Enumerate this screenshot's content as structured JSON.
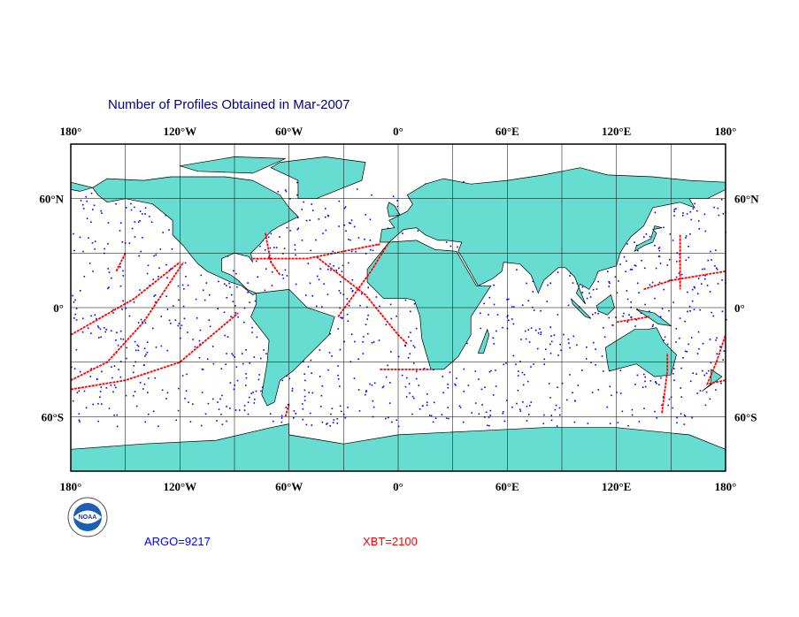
{
  "title": "Number of Profiles Obtained in Mar-2007",
  "lon_labels": [
    "180°",
    "120°W",
    "60°W",
    "0°",
    "60°E",
    "120°E",
    "180°"
  ],
  "lat_labels": [
    "60°N",
    "0°",
    "60°S"
  ],
  "legend": {
    "argo": "ARGO=9217",
    "xbt": "XBT=2100"
  },
  "logo": "NOAA"
}
